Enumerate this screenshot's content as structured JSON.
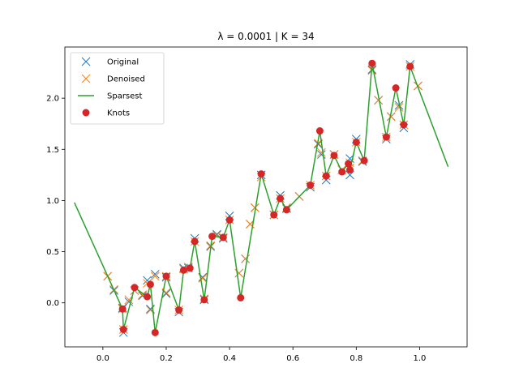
{
  "chart_data": {
    "type": "line",
    "title": "λ = 0.0001   |   K = 34",
    "xlabel": "",
    "ylabel": "",
    "xlim": [
      -0.12,
      1.15
    ],
    "ylim": [
      -0.43,
      2.5
    ],
    "xticks": [
      0.0,
      0.2,
      0.4,
      0.6,
      0.8,
      1.0
    ],
    "xtick_labels": [
      "0.0",
      "0.2",
      "0.4",
      "0.6",
      "0.8",
      "1.0"
    ],
    "yticks": [
      0.0,
      0.5,
      1.0,
      1.5,
      2.0
    ],
    "ytick_labels": [
      "0.0",
      "0.5",
      "1.0",
      "1.5",
      "2.0"
    ],
    "grid": false,
    "legend": {
      "placement": "top-left"
    },
    "series": [
      {
        "name": "Original",
        "kind": "marker-x",
        "color": "#1f77b4",
        "x": [
          0.015,
          0.035,
          0.062,
          0.065,
          0.082,
          0.1,
          0.125,
          0.14,
          0.15,
          0.165,
          0.2,
          0.2,
          0.24,
          0.255,
          0.27,
          0.29,
          0.315,
          0.32,
          0.34,
          0.36,
          0.38,
          0.4,
          0.43,
          0.45,
          0.465,
          0.48,
          0.5,
          0.54,
          0.56,
          0.58,
          0.62,
          0.655,
          0.68,
          0.69,
          0.705,
          0.73,
          0.755,
          0.78,
          0.78,
          0.8,
          0.82,
          0.85,
          0.87,
          0.895,
          0.91,
          0.935,
          0.95,
          0.97,
          0.995
        ],
        "y": [
          0.26,
          0.12,
          -0.05,
          -0.29,
          0.01,
          0.12,
          0.07,
          0.22,
          -0.06,
          0.28,
          0.25,
          0.09,
          -0.09,
          0.34,
          0.34,
          0.63,
          0.25,
          0.03,
          0.55,
          0.67,
          0.63,
          0.85,
          0.29,
          0.43,
          0.77,
          0.93,
          1.25,
          0.86,
          1.05,
          0.92,
          1.04,
          1.13,
          1.55,
          1.45,
          1.2,
          1.45,
          1.3,
          1.25,
          1.41,
          1.6,
          1.38,
          2.28,
          1.98,
          1.6,
          1.82,
          1.93,
          1.71,
          2.33,
          2.12
        ]
      },
      {
        "name": "Denoised",
        "kind": "marker-x",
        "color": "#ff7f0e",
        "x": [
          0.015,
          0.035,
          0.062,
          0.065,
          0.082,
          0.1,
          0.125,
          0.14,
          0.15,
          0.165,
          0.2,
          0.2,
          0.24,
          0.255,
          0.27,
          0.29,
          0.315,
          0.32,
          0.34,
          0.36,
          0.38,
          0.4,
          0.43,
          0.45,
          0.465,
          0.48,
          0.5,
          0.54,
          0.56,
          0.58,
          0.62,
          0.655,
          0.68,
          0.69,
          0.705,
          0.73,
          0.755,
          0.78,
          0.78,
          0.8,
          0.82,
          0.85,
          0.87,
          0.895,
          0.91,
          0.935,
          0.95,
          0.97,
          0.995
        ],
        "y": [
          0.26,
          0.13,
          -0.06,
          -0.26,
          0.03,
          0.12,
          0.08,
          0.19,
          -0.07,
          0.26,
          0.26,
          0.1,
          -0.07,
          0.33,
          0.35,
          0.6,
          0.24,
          0.04,
          0.56,
          0.66,
          0.64,
          0.81,
          0.29,
          0.43,
          0.77,
          0.93,
          1.23,
          0.86,
          1.02,
          0.93,
          1.04,
          1.15,
          1.56,
          1.47,
          1.24,
          1.45,
          1.3,
          1.32,
          1.37,
          1.57,
          1.39,
          2.27,
          1.98,
          1.62,
          1.82,
          1.91,
          1.74,
          2.31,
          2.12
        ]
      },
      {
        "name": "Sparsest",
        "kind": "line",
        "color": "#2ca02c",
        "x": [
          -0.09,
          0.062,
          0.065,
          0.1,
          0.14,
          0.15,
          0.165,
          0.2,
          0.24,
          0.255,
          0.275,
          0.29,
          0.32,
          0.345,
          0.38,
          0.4,
          0.435,
          0.5,
          0.54,
          0.56,
          0.58,
          0.655,
          0.685,
          0.705,
          0.73,
          0.755,
          0.775,
          0.78,
          0.8,
          0.825,
          0.85,
          0.895,
          0.925,
          0.95,
          0.97,
          1.09
        ],
        "y": [
          0.98,
          -0.06,
          -0.26,
          0.15,
          0.06,
          0.18,
          -0.29,
          0.26,
          -0.07,
          0.32,
          0.34,
          0.6,
          0.03,
          0.65,
          0.64,
          0.81,
          0.05,
          1.26,
          0.86,
          1.02,
          0.91,
          1.15,
          1.68,
          1.24,
          1.44,
          1.28,
          1.36,
          1.3,
          1.57,
          1.39,
          2.34,
          1.62,
          2.1,
          1.74,
          2.31,
          1.33
        ]
      },
      {
        "name": "Knots",
        "kind": "marker-dot",
        "color": "#d62728",
        "x": [
          0.062,
          0.065,
          0.1,
          0.14,
          0.15,
          0.165,
          0.2,
          0.24,
          0.255,
          0.275,
          0.29,
          0.32,
          0.345,
          0.38,
          0.4,
          0.435,
          0.5,
          0.54,
          0.56,
          0.58,
          0.655,
          0.685,
          0.705,
          0.73,
          0.755,
          0.775,
          0.78,
          0.8,
          0.825,
          0.85,
          0.895,
          0.925,
          0.95,
          0.97
        ],
        "y": [
          -0.06,
          -0.26,
          0.15,
          0.06,
          0.18,
          -0.29,
          0.26,
          -0.07,
          0.32,
          0.34,
          0.6,
          0.03,
          0.65,
          0.64,
          0.81,
          0.05,
          1.26,
          0.86,
          1.02,
          0.91,
          1.15,
          1.68,
          1.24,
          1.44,
          1.28,
          1.36,
          1.3,
          1.57,
          1.39,
          2.34,
          1.62,
          2.1,
          1.74,
          2.31
        ]
      }
    ]
  }
}
